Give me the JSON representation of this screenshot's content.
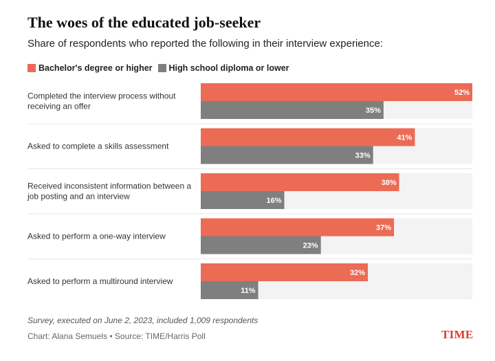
{
  "header": {
    "title": "The woes of the educated job-seeker",
    "subtitle": "Share of respondents who reported the following in their interview experience:"
  },
  "colors": {
    "bachelor": "#ec6b55",
    "highschool": "#7f7f7f",
    "track": "#f3f3f3",
    "label_text": "#ffffff"
  },
  "chart_data": {
    "type": "bar",
    "orientation": "horizontal",
    "title": "The woes of the educated job-seeker",
    "subtitle": "Share of respondents who reported the following in their interview experience:",
    "unit": "%",
    "xlim": [
      0,
      52
    ],
    "categories": [
      [
        "Completed the interview process without",
        "receiving an offer"
      ],
      [
        "Asked to complete a skills assessment"
      ],
      [
        "Received inconsistent information between a",
        "job posting and an interview"
      ],
      [
        "Asked to perform a one-way interview"
      ],
      [
        "Asked to perform a multiround interview"
      ]
    ],
    "series": [
      {
        "name": "Bachelor's degree or higher",
        "values": [
          52,
          41,
          38,
          37,
          32
        ]
      },
      {
        "name": "High school diploma or lower",
        "values": [
          35,
          33,
          16,
          23,
          11
        ]
      }
    ],
    "legend": "top-left"
  },
  "footer": {
    "note": "Survey, executed on June 2, 2023, included 1,009 respondents",
    "credit": "Chart: Alana Semuels • Source: TIME/Harris Poll",
    "brand": "TIME"
  }
}
